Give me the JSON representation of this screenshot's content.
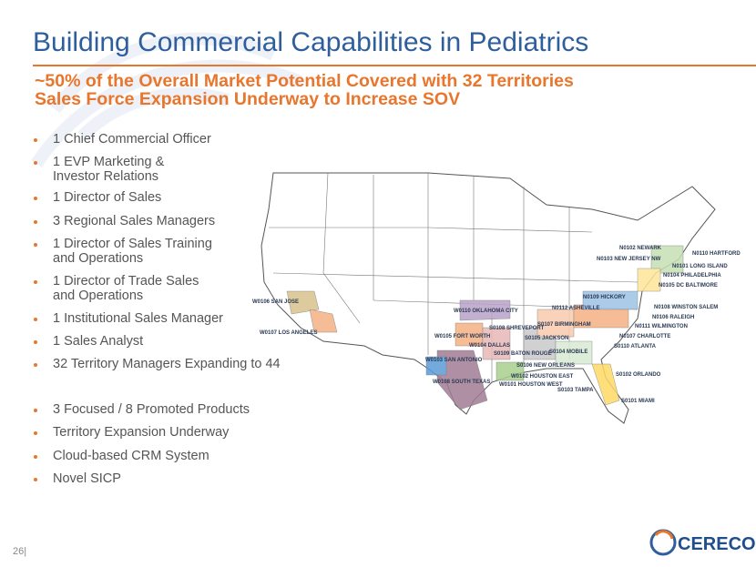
{
  "header": {
    "title": "Building Commercial Capabilities in Pediatrics",
    "subtitle_lines": [
      "~50% of the Overall Market Potential Covered with 32 Territories",
      "Sales Force Expansion Underway to Increase SOV"
    ]
  },
  "bullets": {
    "group1": [
      "1 Chief Commercial Officer",
      "1 EVP Marketing &\nInvestor Relations",
      "1 Director of Sales",
      "3 Regional Sales Managers",
      "1 Director of Sales Training\nand Operations",
      "1 Director of Trade Sales\nand Operations",
      "1 Institutional Sales Manager",
      "1 Sales Analyst",
      "32 Territory Managers Expanding to 44"
    ],
    "group2": [
      "3 Focused / 8 Promoted Products",
      "Territory Expansion Underway",
      "Cloud-based CRM System",
      "Novel SICP"
    ]
  },
  "map": {
    "labels": [
      "N0102 NEWARK",
      "N0110 HARTFORD",
      "N0103 NEW JERSEY NW",
      "N0101 LONG ISLAND",
      "N0104 PHILADELPHIA",
      "N0105 DC BALTIMORE",
      "W0106 SAN JOSE",
      "N0109 HICKORY",
      "N0108 WINSTON SALEM",
      "N0112 ASHEVILLE",
      "W0110 OKLAHOMA CITY",
      "N0106 RALEIGH",
      "S0107 BIRMINGHAM",
      "N0111 WILMINGTON",
      "W0107 LOS ANGELES",
      "S0108 SHREVEPORT",
      "S0105 JACKSON",
      "N0107 CHARLOTTE",
      "W0105 FORT WORTH",
      "W0104 DALLAS",
      "S0110 ATLANTA",
      "S0104 MOBILE",
      "S0109 BATON ROUGE",
      "W0103 SAN ANTONIO",
      "S0106 NEW ORLEANS",
      "W0102 HOUSTON EAST",
      "S0102 ORLANDO",
      "W0101 HOUSTON WEST",
      "W0108 SOUTH TEXAS",
      "S0103 TAMPA",
      "S0101 MIAMI"
    ]
  },
  "footer": {
    "page": "26|",
    "logo": "CERECOR"
  }
}
